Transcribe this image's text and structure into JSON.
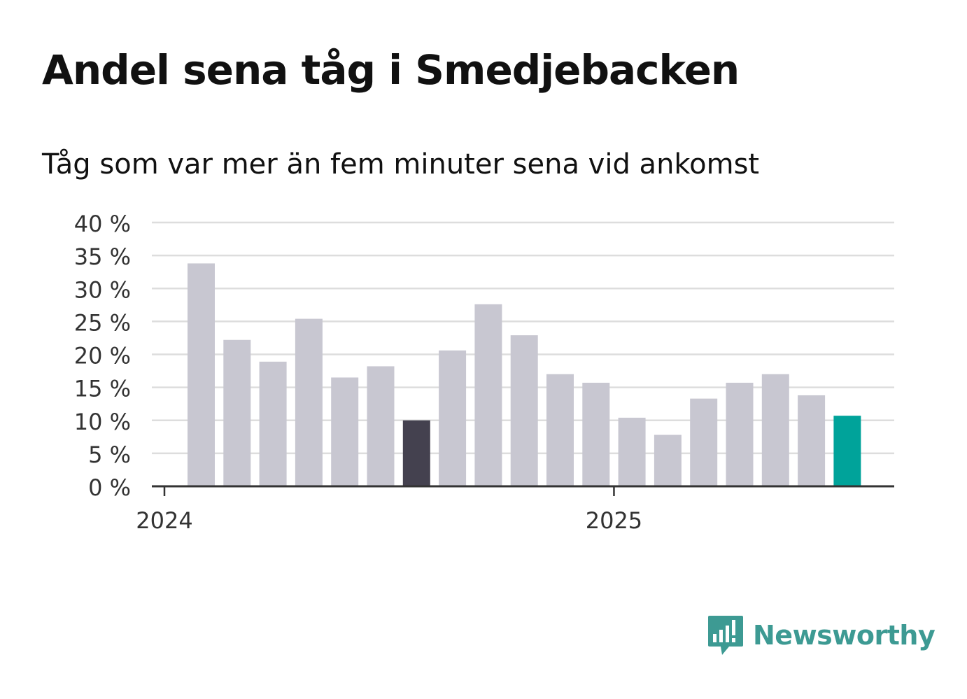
{
  "title": "Andel sena tåg i Smedjebacken",
  "subtitle": "Tåg som var mer än fem minuter sena vid ankomst",
  "logo": {
    "text": "Newsworthy",
    "icon": "newsworthy-chart-bubble-icon",
    "color": "#3d9a93"
  },
  "chart_data": {
    "type": "bar",
    "ylim": [
      0,
      40
    ],
    "yticks": [
      0,
      5,
      10,
      15,
      20,
      25,
      30,
      35,
      40
    ],
    "ytick_labels": [
      "0 %",
      "5 %",
      "10 %",
      "15 %",
      "20 %",
      "25 %",
      "30 %",
      "35 %",
      "40 %"
    ],
    "xtick_labels": [
      {
        "label": "2024",
        "at_index": 0
      },
      {
        "label": "2025",
        "at_index": 12
      }
    ],
    "values": [
      33.8,
      22.2,
      18.9,
      25.4,
      16.5,
      18.2,
      10.0,
      20.6,
      27.6,
      22.9,
      17.0,
      15.7,
      10.4,
      7.8,
      13.3,
      15.7,
      17.0,
      13.8,
      10.7
    ],
    "highlight": [
      {
        "index": 6,
        "color": "#44414f"
      },
      {
        "index": 18,
        "color": "#00a39a"
      }
    ],
    "colors": {
      "default_bar": "#c8c7d1",
      "grid": "#dddddd",
      "axis": "#333333",
      "tick_text": "#333333"
    },
    "grid": true,
    "legend": "none"
  }
}
